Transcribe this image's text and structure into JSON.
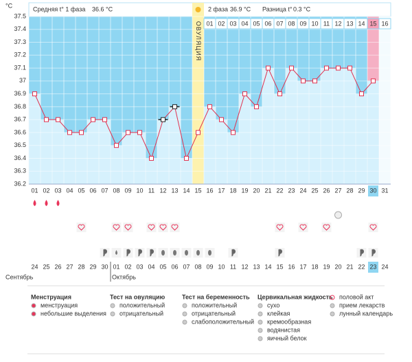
{
  "chart_data": {
    "type": "line",
    "y_unit": "°C",
    "header": {
      "phase1_label": "Средняя t° 1 фаза",
      "phase1_value": "36.6 °C",
      "phase2_label": "2 фаза",
      "phase2_value": "36.9 °C",
      "diff_label": "Разница t°",
      "diff_value": "0.3 °C",
      "ovulation": "ОВУЛЯЦИЯ"
    },
    "categories": [
      "01",
      "02",
      "03",
      "04",
      "05",
      "06",
      "07",
      "08",
      "09",
      "10",
      "11",
      "12",
      "13",
      "14",
      "15",
      "16",
      "17",
      "18",
      "19",
      "20",
      "21",
      "22",
      "23",
      "24",
      "25",
      "26",
      "27",
      "28",
      "29",
      "30",
      "31"
    ],
    "values": [
      36.9,
      36.7,
      36.7,
      36.6,
      36.6,
      36.7,
      36.7,
      36.5,
      36.6,
      36.6,
      36.4,
      36.7,
      36.8,
      36.4,
      36.6,
      36.8,
      36.7,
      36.6,
      36.9,
      36.8,
      37.1,
      36.9,
      37.1,
      37,
      37,
      37.1,
      37.1,
      37.1,
      36.9,
      37,
      null
    ],
    "excluded": [
      11,
      12
    ],
    "ovulation_index": 14,
    "today_index": 29,
    "phase2_days": [
      "01",
      "02",
      "03",
      "04",
      "05",
      "06",
      "07",
      "08",
      "09",
      "10",
      "11",
      "12",
      "13",
      "14",
      "15",
      "16"
    ],
    "ylim": [
      36.2,
      37.5
    ],
    "yticks": [
      37.5,
      37.4,
      37.3,
      37.2,
      37.1,
      37,
      36.9,
      36.8,
      36.7,
      36.6,
      36.5,
      36.4,
      36.3,
      36.2
    ],
    "dates": [
      "24",
      "25",
      "26",
      "27",
      "28",
      "29",
      "30",
      "01",
      "02",
      "03",
      "04",
      "05",
      "06",
      "07",
      "08",
      "09",
      "10",
      "11",
      "12",
      "13",
      "14",
      "15",
      "16",
      "17",
      "18",
      "19",
      "20",
      "21",
      "22",
      "23",
      "24"
    ],
    "weekend_dates": [
      5,
      6,
      12,
      13,
      19,
      20,
      26,
      27
    ],
    "months": [
      {
        "index": 0,
        "name": "Сентябрь"
      },
      {
        "index": 7,
        "name": "Октябрь"
      }
    ],
    "menstruation_days": [
      0,
      1,
      2
    ],
    "pregnancy_test_days": [
      26
    ],
    "intercourse_days": [
      4,
      7,
      8,
      10,
      11,
      12,
      21,
      23,
      25,
      29
    ],
    "fluid": [
      null,
      null,
      null,
      null,
      null,
      null,
      "c",
      "w",
      "c",
      "c",
      "c",
      "e",
      "e",
      "e",
      "e",
      "e",
      null,
      "c",
      null,
      null,
      null,
      "c",
      null,
      null,
      null,
      null,
      null,
      null,
      "c",
      "c",
      null
    ],
    "legend": [
      {
        "title": "Менструация",
        "items": [
          "менструация",
          "небольшие выделения"
        ]
      },
      {
        "title": "Тест на овуляцию",
        "items": [
          "положительный",
          "отрицательный"
        ]
      },
      {
        "title": "Тест на беременность",
        "items": [
          "положительный",
          "отрицательный",
          "слабоположительный"
        ]
      },
      {
        "title": "Цервикальная жидкость",
        "items": [
          "сухо",
          "клейкая",
          "кремообразная",
          "водянистая",
          "яичный белок"
        ]
      },
      {
        "title": null,
        "items": [
          "половой акт",
          "прием лекарств",
          "лунный календарь"
        ]
      }
    ]
  }
}
